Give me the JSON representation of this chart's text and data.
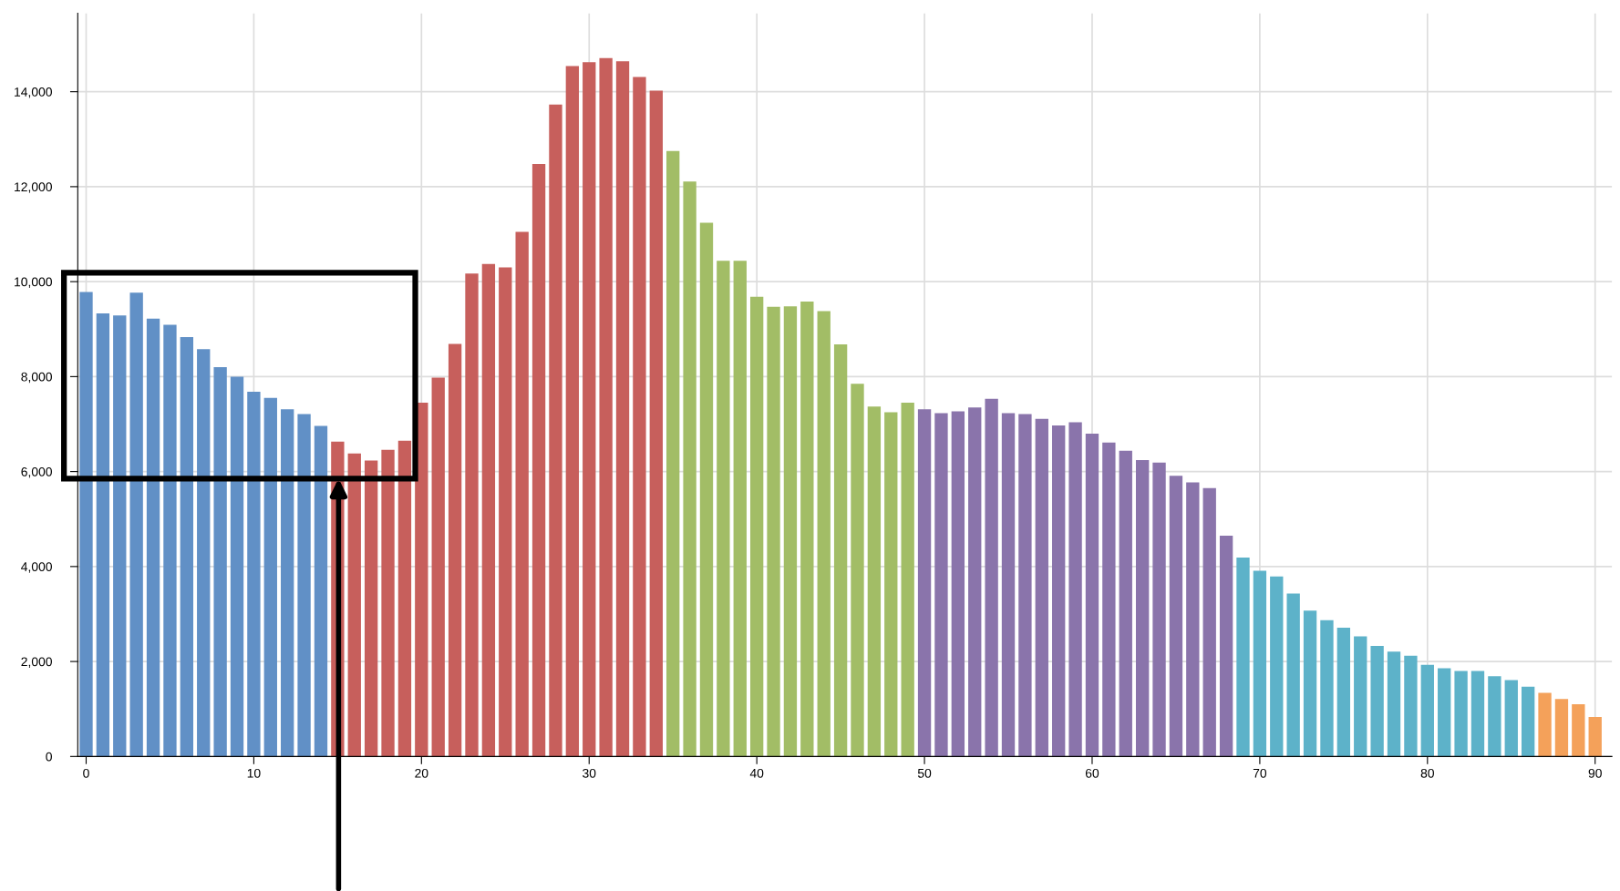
{
  "chart_data": {
    "type": "bar",
    "x": [
      0,
      1,
      2,
      3,
      4,
      5,
      6,
      7,
      8,
      9,
      10,
      11,
      12,
      13,
      14,
      15,
      16,
      17,
      18,
      19,
      20,
      21,
      22,
      23,
      24,
      25,
      26,
      27,
      28,
      29,
      30,
      31,
      32,
      33,
      34,
      35,
      36,
      37,
      38,
      39,
      40,
      41,
      42,
      43,
      44,
      45,
      46,
      47,
      48,
      49,
      50,
      51,
      52,
      53,
      54,
      55,
      56,
      57,
      58,
      59,
      60,
      61,
      62,
      63,
      64,
      65,
      66,
      67,
      68,
      69,
      70,
      71,
      72,
      73,
      74,
      75,
      76,
      77,
      78,
      79,
      80,
      81,
      82,
      83,
      84,
      85,
      86,
      87,
      88,
      89,
      90
    ],
    "values": [
      9780,
      9330,
      9290,
      9770,
      9220,
      9090,
      8830,
      8580,
      8200,
      8000,
      7680,
      7550,
      7310,
      7210,
      6960,
      6630,
      6380,
      6230,
      6460,
      6650,
      7450,
      7980,
      8690,
      10170,
      10370,
      10300,
      11050,
      12480,
      13730,
      14540,
      14620,
      14710,
      14640,
      14310,
      14020,
      12750,
      12110,
      11240,
      10440,
      10440,
      9680,
      9470,
      9480,
      9580,
      9380,
      8680,
      7850,
      7370,
      7250,
      7450,
      7310,
      7230,
      7270,
      7350,
      7530,
      7230,
      7210,
      7110,
      6970,
      7040,
      6800,
      6610,
      6440,
      6240,
      6190,
      5910,
      5770,
      5650,
      4650,
      4190,
      3910,
      3790,
      3430,
      3070,
      2870,
      2710,
      2530,
      2330,
      2210,
      2120,
      1930,
      1860,
      1800,
      1800,
      1690,
      1610,
      1470,
      1340,
      1210,
      1100,
      830
    ],
    "colors": [
      "#6190c6",
      "#6190c6",
      "#6190c6",
      "#6190c6",
      "#6190c6",
      "#6190c6",
      "#6190c6",
      "#6190c6",
      "#6190c6",
      "#6190c6",
      "#6190c6",
      "#6190c6",
      "#6190c6",
      "#6190c6",
      "#6190c6",
      "#c75f5c",
      "#c75f5c",
      "#c75f5c",
      "#c75f5c",
      "#c75f5c",
      "#c75f5c",
      "#c75f5c",
      "#c75f5c",
      "#c75f5c",
      "#c75f5c",
      "#c75f5c",
      "#c75f5c",
      "#c75f5c",
      "#c75f5c",
      "#c75f5c",
      "#c75f5c",
      "#c75f5c",
      "#c75f5c",
      "#c75f5c",
      "#c75f5c",
      "#a2bd66",
      "#a2bd66",
      "#a2bd66",
      "#a2bd66",
      "#a2bd66",
      "#a2bd66",
      "#a2bd66",
      "#a2bd66",
      "#a2bd66",
      "#a2bd66",
      "#a2bd66",
      "#a2bd66",
      "#a2bd66",
      "#a2bd66",
      "#a2bd66",
      "#8a74ab",
      "#8a74ab",
      "#8a74ab",
      "#8a74ab",
      "#8a74ab",
      "#8a74ab",
      "#8a74ab",
      "#8a74ab",
      "#8a74ab",
      "#8a74ab",
      "#8a74ab",
      "#8a74ab",
      "#8a74ab",
      "#8a74ab",
      "#8a74ab",
      "#8a74ab",
      "#8a74ab",
      "#8a74ab",
      "#8a74ab",
      "#5db2c9",
      "#5db2c9",
      "#5db2c9",
      "#5db2c9",
      "#5db2c9",
      "#5db2c9",
      "#5db2c9",
      "#5db2c9",
      "#5db2c9",
      "#5db2c9",
      "#5db2c9",
      "#5db2c9",
      "#5db2c9",
      "#5db2c9",
      "#5db2c9",
      "#5db2c9",
      "#5db2c9",
      "#5db2c9",
      "#f4a15a",
      "#f4a15a",
      "#f4a15a",
      "#f4a15a"
    ],
    "xlim": [
      -0.5,
      91
    ],
    "xticks": [
      0,
      10,
      20,
      30,
      40,
      50,
      60,
      70,
      80,
      90
    ],
    "ylim": [
      0,
      15650
    ],
    "yticks": [
      {
        "value": 0,
        "label": "0"
      },
      {
        "value": 2000,
        "label": "2,000"
      },
      {
        "value": 4000,
        "label": "4,000"
      },
      {
        "value": 6000,
        "label": "6,000"
      },
      {
        "value": 8000,
        "label": "8,000"
      },
      {
        "value": 10000,
        "label": "10,000"
      },
      {
        "value": 12000,
        "label": "12,000"
      },
      {
        "value": 14000,
        "label": "14,000"
      }
    ],
    "grid": true
  }
}
